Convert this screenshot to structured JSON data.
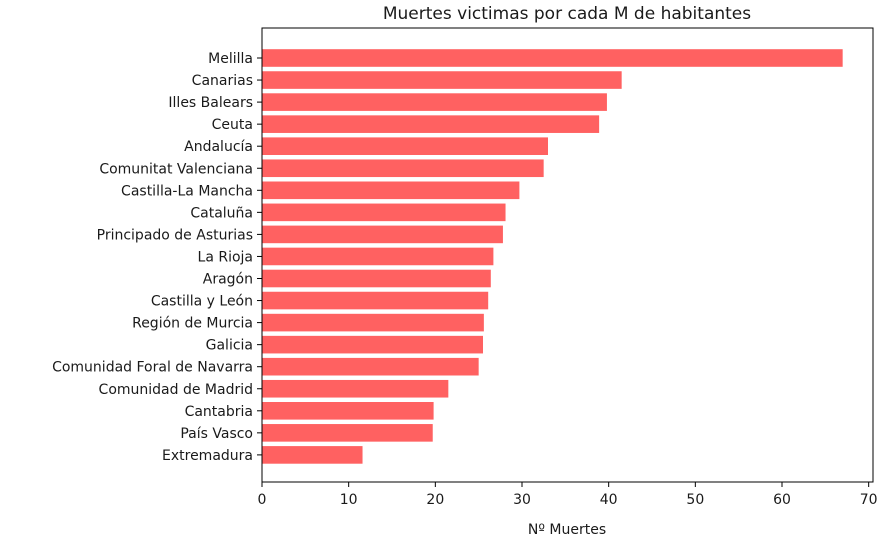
{
  "chart_data": {
    "type": "bar",
    "orientation": "horizontal",
    "title": "Muertes victimas por cada M de habitantes",
    "xlabel": "Nº Muertes",
    "ylabel": "",
    "xlim": [
      0,
      70.5
    ],
    "xticks": [
      0,
      10,
      20,
      30,
      40,
      50,
      60,
      70
    ],
    "grid": false,
    "bar_color": "#ff6161",
    "categories": [
      "Melilla",
      "Canarias",
      "Illes Balears",
      "Ceuta",
      "Andalucía",
      "Comunitat Valenciana",
      "Castilla-La Mancha",
      "Cataluña",
      "Principado de Asturias",
      "La Rioja",
      "Aragón",
      "Castilla y León",
      "Región de Murcia",
      "Galicia",
      "Comunidad Foral de Navarra",
      "Comunidad de Madrid",
      "Cantabria",
      "País Vasco",
      "Extremadura"
    ],
    "values": [
      67.0,
      41.5,
      39.8,
      38.9,
      33.0,
      32.5,
      29.7,
      28.1,
      27.8,
      26.7,
      26.4,
      26.1,
      25.6,
      25.5,
      25.0,
      21.5,
      19.8,
      19.7,
      11.6
    ]
  }
}
